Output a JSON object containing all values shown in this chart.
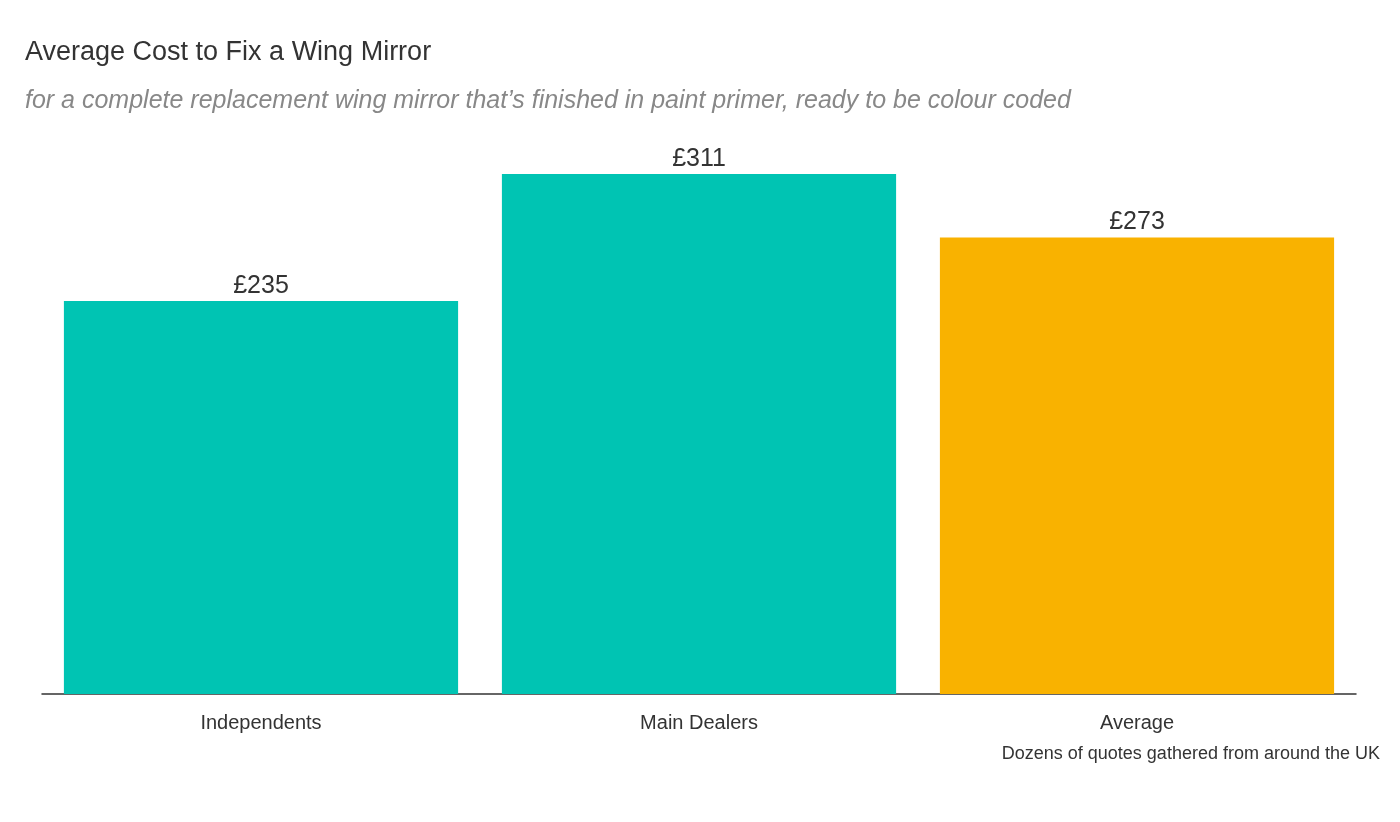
{
  "chart_data": {
    "type": "bar",
    "title": "Average Cost to Fix a Wing Mirror",
    "subtitle": "for a complete replacement wing mirror that’s finished in paint primer, ready to be colour coded",
    "categories": [
      "Independents",
      "Main Dealers",
      "Average"
    ],
    "values": [
      235,
      311,
      273
    ],
    "value_labels": [
      "£235",
      "£311",
      "£273"
    ],
    "colors": [
      "#00c4b3",
      "#00c4b3",
      "#f9b200"
    ],
    "annotations": [
      "Dozens of quotes gathered from around the UK"
    ],
    "grid": false
  }
}
